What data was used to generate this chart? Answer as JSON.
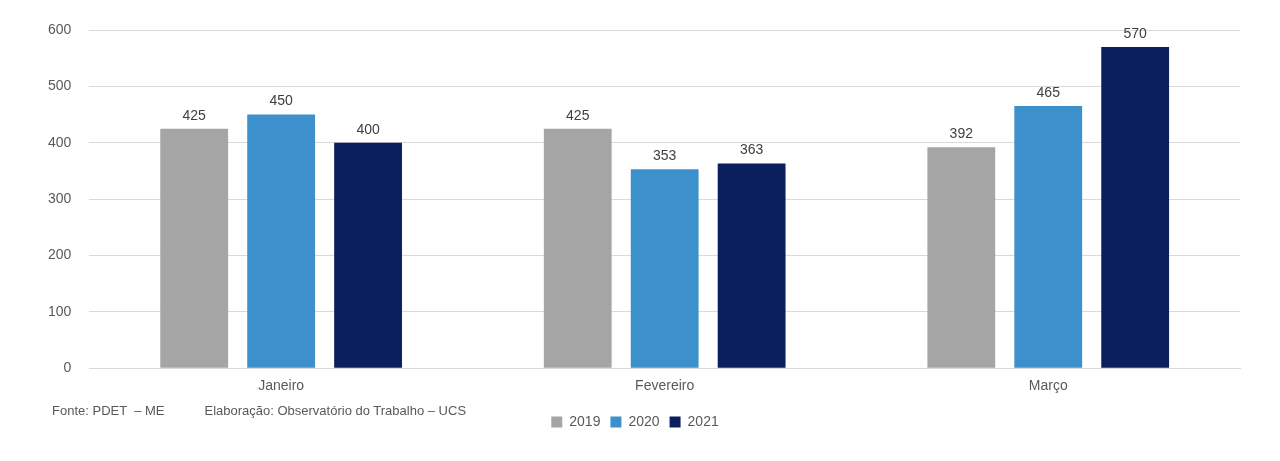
{
  "chart_data": {
    "type": "bar",
    "categories": [
      "Janeiro",
      "Fevereiro",
      "Março"
    ],
    "series": [
      {
        "name": "2019",
        "color": "#a5a5a5",
        "values": [
          425,
          425,
          392
        ]
      },
      {
        "name": "2020",
        "color": "#3c91cd",
        "values": [
          450,
          353,
          465
        ]
      },
      {
        "name": "2021",
        "color": "#0a1f5c",
        "values": [
          400,
          363,
          570
        ]
      }
    ],
    "ylim": [
      0,
      600
    ],
    "yticks": [
      0,
      100,
      200,
      300,
      400,
      500,
      600
    ],
    "grid": "y",
    "legend": "bottom",
    "data_labels": true,
    "annotations": [
      "Fonte: PDET  – ME",
      "Elaboração: Observatório do Trabalho – UCS"
    ]
  }
}
